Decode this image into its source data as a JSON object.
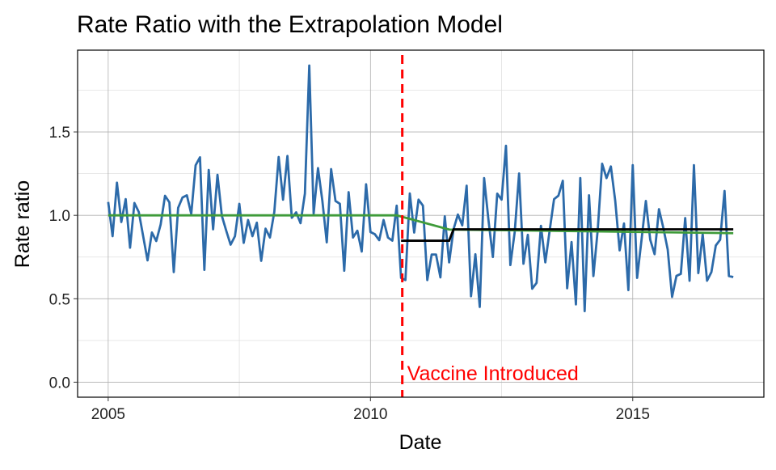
{
  "chart_data": {
    "type": "line",
    "title": "Rate Ratio with the Extrapolation Model",
    "xlabel": "Date",
    "ylabel": "Rate ratio",
    "xlim": [
      "2004-06",
      "2017-07"
    ],
    "ylim": [
      -0.09,
      1.99
    ],
    "x_ticks": [
      {
        "value": "2005-01",
        "label": "2005"
      },
      {
        "value": "2010-01",
        "label": "2010"
      },
      {
        "value": "2015-01",
        "label": "2015"
      }
    ],
    "y_ticks": [
      {
        "value": 0,
        "label": "0.0"
      },
      {
        "value": 0.5,
        "label": "0.5"
      },
      {
        "value": 1.0,
        "label": "1.0"
      },
      {
        "value": 1.5,
        "label": "1.5"
      }
    ],
    "grid": true,
    "colors": {
      "observed": "#2c6aa9",
      "model": "#000000",
      "extrapolation": "#3f9b3a",
      "intervention": "#ff0000"
    },
    "annotation": {
      "text": "Vaccine Introduced",
      "date": "2010-08",
      "y": 0.05
    },
    "intervention_date": "2010-08",
    "series": [
      {
        "dates": [
          "2005-01",
          "2005-02",
          "2005-03",
          "2005-04",
          "2005-05",
          "2005-06",
          "2005-07",
          "2005-08",
          "2005-09",
          "2005-10",
          "2005-11",
          "2005-12",
          "2006-01",
          "2006-02",
          "2006-03",
          "2006-04",
          "2006-05",
          "2006-06",
          "2006-07",
          "2006-08",
          "2006-09",
          "2006-10",
          "2006-11",
          "2006-12",
          "2007-01",
          "2007-02",
          "2007-03",
          "2007-04",
          "2007-05",
          "2007-06",
          "2007-07",
          "2007-08",
          "2007-09",
          "2007-10",
          "2007-11",
          "2007-12",
          "2008-01",
          "2008-02",
          "2008-03",
          "2008-04",
          "2008-05",
          "2008-06",
          "2008-07",
          "2008-08",
          "2008-09",
          "2008-10",
          "2008-11",
          "2008-12",
          "2009-01",
          "2009-02",
          "2009-03",
          "2009-04",
          "2009-05",
          "2009-06",
          "2009-07",
          "2009-08",
          "2009-09",
          "2009-10",
          "2009-11",
          "2009-12",
          "2010-01",
          "2010-02",
          "2010-03",
          "2010-04",
          "2010-05",
          "2010-06",
          "2010-07",
          "2010-08",
          "2010-09",
          "2010-10",
          "2010-11",
          "2010-12",
          "2011-01",
          "2011-02",
          "2011-03",
          "2011-04",
          "2011-05",
          "2011-06",
          "2011-07",
          "2011-08",
          "2011-09",
          "2011-10",
          "2011-11",
          "2011-12",
          "2012-01",
          "2012-02",
          "2012-03",
          "2012-04",
          "2012-05",
          "2012-06",
          "2012-07",
          "2012-08",
          "2012-09",
          "2012-10",
          "2012-11",
          "2012-12",
          "2013-01",
          "2013-02",
          "2013-03",
          "2013-04",
          "2013-05",
          "2013-06",
          "2013-07",
          "2013-08",
          "2013-09",
          "2013-10",
          "2013-11",
          "2013-12",
          "2014-01",
          "2014-02",
          "2014-03",
          "2014-04",
          "2014-05",
          "2014-06",
          "2014-07",
          "2014-08",
          "2014-09",
          "2014-10",
          "2014-11",
          "2014-12",
          "2015-01",
          "2015-02",
          "2015-03",
          "2015-04",
          "2015-05",
          "2015-06",
          "2015-07",
          "2015-08",
          "2015-09",
          "2015-10",
          "2015-11",
          "2015-12",
          "2016-01",
          "2016-02",
          "2016-03",
          "2016-04",
          "2016-05",
          "2016-06",
          "2016-07",
          "2016-08",
          "2016-09",
          "2016-10",
          "2016-11",
          "2016-12"
        ],
        "values": [
          1.08,
          0.875,
          1.196,
          0.96,
          1.097,
          0.806,
          1.074,
          1.02,
          0.875,
          0.73,
          0.897,
          0.846,
          0.945,
          1.117,
          1.078,
          0.66,
          1.045,
          1.107,
          1.12,
          1.008,
          1.3,
          1.348,
          0.673,
          1.272,
          0.916,
          1.243,
          0.997,
          0.908,
          0.824,
          0.875,
          1.069,
          0.835,
          0.972,
          0.875,
          0.956,
          0.727,
          0.92,
          0.867,
          1.02,
          1.35,
          1.094,
          1.356,
          0.985,
          1.018,
          0.953,
          1.13,
          1.898,
          1.01,
          1.283,
          1.086,
          0.838,
          1.277,
          1.086,
          1.069,
          0.668,
          1.139,
          0.867,
          0.908,
          0.783,
          1.186,
          0.9,
          0.887,
          0.851,
          0.972,
          0.867,
          0.848,
          1.058,
          0.625,
          0.612,
          1.131,
          0.897,
          1.094,
          1.058,
          0.612,
          0.765,
          0.765,
          0.628,
          0.994,
          0.718,
          0.916,
          1.005,
          0.94,
          1.178,
          0.515,
          0.767,
          0.451,
          1.223,
          0.97,
          0.75,
          1.13,
          1.094,
          1.417,
          0.702,
          0.9,
          1.251,
          0.71,
          0.883,
          0.56,
          0.595,
          0.937,
          0.718,
          0.91,
          1.097,
          1.118,
          1.207,
          0.563,
          0.84,
          0.466,
          1.223,
          0.426,
          1.12,
          0.636,
          0.916,
          1.309,
          1.223,
          1.293,
          1.086,
          0.79,
          0.951,
          0.552,
          1.301,
          0.625,
          0.851,
          1.086,
          0.854,
          0.767,
          1.037,
          0.924,
          0.795,
          0.511,
          0.637,
          0.649,
          0.984,
          0.608,
          1.301,
          0.654,
          0.887,
          0.608,
          0.66,
          0.819,
          0.854,
          1.146,
          0.636,
          0.63
        ]
      },
      {
        "points": [
          {
            "date": "2010-08",
            "value": 0.848
          },
          {
            "date": "2011-07",
            "value": 0.848
          },
          {
            "date": "2011-08",
            "value": 0.916
          },
          {
            "date": "2016-12",
            "value": 0.916
          }
        ]
      },
      {
        "points": [
          {
            "date": "2005-01",
            "value": 1.0
          },
          {
            "date": "2010-07",
            "value": 1.0
          },
          {
            "date": "2011-07",
            "value": 0.915
          },
          {
            "date": "2016-12",
            "value": 0.893
          }
        ]
      }
    ]
  }
}
